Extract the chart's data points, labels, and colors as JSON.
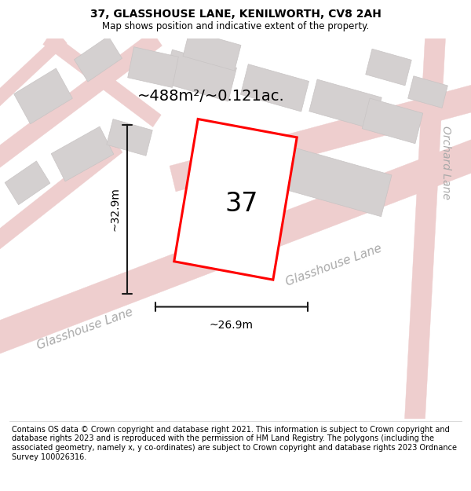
{
  "title": "37, GLASSHOUSE LANE, KENILWORTH, CV8 2AH",
  "subtitle": "Map shows position and indicative extent of the property.",
  "footer": "Contains OS data © Crown copyright and database right 2021. This information is subject to Crown copyright and database rights 2023 and is reproduced with the permission of HM Land Registry. The polygons (including the associated geometry, namely x, y co-ordinates) are subject to Crown copyright and database rights 2023 Ordnance Survey 100026316.",
  "area_label": "~488m²/~0.121ac.",
  "plot_number": "37",
  "dim_width": "~26.9m",
  "dim_height": "~32.9m",
  "road_label_bl": "Glasshouse Lane",
  "road_label_br": "Glasshouse Lane",
  "road_label_right": "Orchard Lane",
  "map_bg": "#f2eeee",
  "road_color": "#eecece",
  "road_edge_color": "#e8c0c0",
  "building_color": "#d4d0d0",
  "building_edge": "#c8c4c4",
  "plot_outline_color": "#ff0000",
  "plot_fill_color": "#ffffff",
  "dim_line_color": "#1a1a1a",
  "title_fontsize": 10,
  "subtitle_fontsize": 8.5,
  "footer_fontsize": 7.0,
  "area_fontsize": 14,
  "plot_num_fontsize": 24,
  "dim_fontsize": 10,
  "road_label_fontsize": 11
}
